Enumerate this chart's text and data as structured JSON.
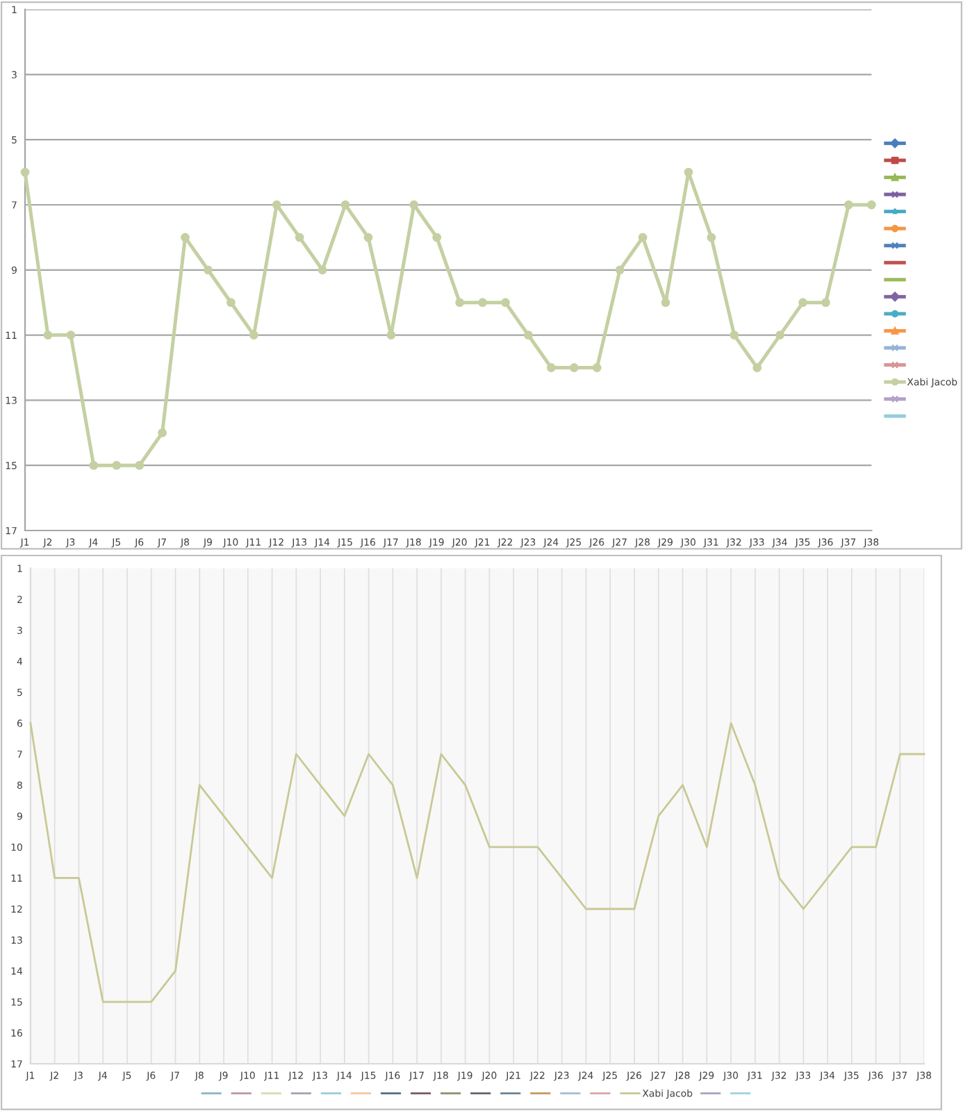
{
  "chart_data": [
    {
      "type": "line",
      "categories": [
        "J1",
        "J2",
        "J3",
        "J4",
        "J5",
        "J6",
        "J7",
        "J8",
        "J9",
        "J10",
        "J11",
        "J12",
        "J13",
        "J14",
        "J15",
        "J16",
        "J17",
        "J18",
        "J19",
        "J20",
        "J21",
        "J22",
        "J23",
        "J24",
        "J25",
        "J26",
        "J27",
        "J28",
        "J29",
        "J30",
        "J31",
        "J32",
        "J33",
        "J34",
        "J35",
        "J36",
        "J37",
        "J38"
      ],
      "ylim": [
        17,
        1
      ],
      "yticks": [
        1,
        3,
        5,
        7,
        9,
        11,
        13,
        15,
        17
      ],
      "grid": "y",
      "legend": "right",
      "line_style": "solid",
      "series": [
        {
          "color": "#4a7ebb",
          "marker": "diamond",
          "values": [
            null,
            null,
            null,
            null,
            null,
            null,
            null,
            null,
            null,
            null,
            null,
            null,
            null,
            null,
            null,
            null,
            null,
            null,
            null,
            null,
            null,
            null,
            null,
            null,
            null,
            null,
            null,
            null,
            null,
            null,
            null,
            null,
            null,
            null,
            null,
            null,
            null,
            null
          ]
        },
        {
          "color": "#be4b48",
          "marker": "square",
          "values": [
            null,
            null,
            null,
            null,
            null,
            null,
            null,
            null,
            null,
            null,
            null,
            null,
            null,
            null,
            null,
            null,
            null,
            null,
            null,
            null,
            null,
            null,
            null,
            null,
            null,
            null,
            null,
            null,
            null,
            null,
            null,
            null,
            null,
            null,
            null,
            null,
            null,
            null
          ]
        },
        {
          "color": "#98b954",
          "marker": "triangle",
          "values": [
            null,
            null,
            null,
            null,
            null,
            null,
            null,
            null,
            null,
            null,
            null,
            null,
            null,
            null,
            null,
            null,
            null,
            null,
            null,
            null,
            null,
            null,
            null,
            null,
            null,
            null,
            null,
            null,
            null,
            null,
            null,
            null,
            null,
            null,
            null,
            null,
            null,
            null
          ]
        },
        {
          "color": "#7d60a0",
          "marker": "cross",
          "values": [
            null,
            null,
            null,
            null,
            null,
            null,
            null,
            null,
            null,
            null,
            null,
            null,
            null,
            null,
            null,
            null,
            null,
            null,
            null,
            null,
            null,
            null,
            null,
            null,
            null,
            null,
            null,
            null,
            null,
            null,
            null,
            null,
            null,
            null,
            null,
            null,
            null,
            null
          ]
        },
        {
          "color": "#46aac5",
          "marker": "star",
          "values": [
            null,
            null,
            null,
            null,
            null,
            null,
            null,
            null,
            null,
            null,
            null,
            null,
            null,
            null,
            null,
            null,
            null,
            null,
            null,
            null,
            null,
            null,
            null,
            null,
            null,
            null,
            null,
            null,
            null,
            null,
            null,
            null,
            null,
            null,
            null,
            null,
            null,
            null
          ]
        },
        {
          "color": "#f69545",
          "marker": "circle",
          "values": [
            null,
            null,
            null,
            null,
            null,
            null,
            null,
            null,
            null,
            null,
            null,
            null,
            null,
            null,
            null,
            null,
            null,
            null,
            null,
            null,
            null,
            null,
            null,
            null,
            null,
            null,
            null,
            null,
            null,
            null,
            null,
            null,
            null,
            null,
            null,
            null,
            null,
            null
          ]
        },
        {
          "color": "#4f81bd",
          "marker": "cross",
          "values": [
            null,
            null,
            null,
            null,
            null,
            null,
            null,
            null,
            null,
            null,
            null,
            null,
            null,
            null,
            null,
            null,
            null,
            null,
            null,
            null,
            null,
            null,
            null,
            null,
            null,
            null,
            null,
            null,
            null,
            null,
            null,
            null,
            null,
            null,
            null,
            null,
            null,
            null
          ]
        },
        {
          "color": "#c0504d",
          "marker": "none",
          "values": [
            null,
            null,
            null,
            null,
            null,
            null,
            null,
            null,
            null,
            null,
            null,
            null,
            null,
            null,
            null,
            null,
            null,
            null,
            null,
            null,
            null,
            null,
            null,
            null,
            null,
            null,
            null,
            null,
            null,
            null,
            null,
            null,
            null,
            null,
            null,
            null,
            null,
            null
          ]
        },
        {
          "color": "#9bbb59",
          "marker": "none",
          "values": [
            null,
            null,
            null,
            null,
            null,
            null,
            null,
            null,
            null,
            null,
            null,
            null,
            null,
            null,
            null,
            null,
            null,
            null,
            null,
            null,
            null,
            null,
            null,
            null,
            null,
            null,
            null,
            null,
            null,
            null,
            null,
            null,
            null,
            null,
            null,
            null,
            null,
            null
          ]
        },
        {
          "color": "#8064a2",
          "marker": "diamond",
          "values": [
            null,
            null,
            null,
            null,
            null,
            null,
            null,
            null,
            null,
            null,
            null,
            null,
            null,
            null,
            null,
            null,
            null,
            null,
            null,
            null,
            null,
            null,
            null,
            null,
            null,
            null,
            null,
            null,
            null,
            null,
            null,
            null,
            null,
            null,
            null,
            null,
            null,
            null
          ]
        },
        {
          "color": "#4bacc6",
          "marker": "circle",
          "values": [
            null,
            null,
            null,
            null,
            null,
            null,
            null,
            null,
            null,
            null,
            null,
            null,
            null,
            null,
            null,
            null,
            null,
            null,
            null,
            null,
            null,
            null,
            null,
            null,
            null,
            null,
            null,
            null,
            null,
            null,
            null,
            null,
            null,
            null,
            null,
            null,
            null,
            null
          ]
        },
        {
          "color": "#f79646",
          "marker": "triangle",
          "values": [
            null,
            null,
            null,
            null,
            null,
            null,
            null,
            null,
            null,
            null,
            null,
            null,
            null,
            null,
            null,
            null,
            null,
            null,
            null,
            null,
            null,
            null,
            null,
            null,
            null,
            null,
            null,
            null,
            null,
            null,
            null,
            null,
            null,
            null,
            null,
            null,
            null,
            null
          ]
        },
        {
          "color": "#95b3d7",
          "marker": "cross",
          "values": [
            null,
            null,
            null,
            null,
            null,
            null,
            null,
            null,
            null,
            null,
            null,
            null,
            null,
            null,
            null,
            null,
            null,
            null,
            null,
            null,
            null,
            null,
            null,
            null,
            null,
            null,
            null,
            null,
            null,
            null,
            null,
            null,
            null,
            null,
            null,
            null,
            null,
            null
          ]
        },
        {
          "color": "#d99694",
          "marker": "cross",
          "values": [
            null,
            null,
            null,
            null,
            null,
            null,
            null,
            null,
            null,
            null,
            null,
            null,
            null,
            null,
            null,
            null,
            null,
            null,
            null,
            null,
            null,
            null,
            null,
            null,
            null,
            null,
            null,
            null,
            null,
            null,
            null,
            null,
            null,
            null,
            null,
            null,
            null,
            null
          ]
        },
        {
          "name": "Xabi Jacob",
          "color": "#c4d0a2",
          "marker": "circle",
          "values": [
            6,
            11,
            11,
            15,
            15,
            15,
            14,
            8,
            9,
            10,
            11,
            7,
            8,
            9,
            7,
            8,
            11,
            7,
            8,
            10,
            10,
            10,
            11,
            12,
            12,
            12,
            9,
            8,
            10,
            6,
            8,
            11,
            12,
            11,
            10,
            10,
            7,
            7
          ]
        },
        {
          "color": "#b3a2c7",
          "marker": "cross",
          "values": [
            null,
            null,
            null,
            null,
            null,
            null,
            null,
            null,
            null,
            null,
            null,
            null,
            null,
            null,
            null,
            null,
            null,
            null,
            null,
            null,
            null,
            null,
            null,
            null,
            null,
            null,
            null,
            null,
            null,
            null,
            null,
            null,
            null,
            null,
            null,
            null,
            null,
            null
          ]
        },
        {
          "color": "#93cddd",
          "marker": "none",
          "values": [
            null,
            null,
            null,
            null,
            null,
            null,
            null,
            null,
            null,
            null,
            null,
            null,
            null,
            null,
            null,
            null,
            null,
            null,
            null,
            null,
            null,
            null,
            null,
            null,
            null,
            null,
            null,
            null,
            null,
            null,
            null,
            null,
            null,
            null,
            null,
            null,
            null,
            null
          ]
        }
      ]
    },
    {
      "type": "line",
      "categories": [
        "J1",
        "J2",
        "J3",
        "J4",
        "J5",
        "J6",
        "J7",
        "J8",
        "J9",
        "J10",
        "J11",
        "J12",
        "J13",
        "J14",
        "J15",
        "J16",
        "J17",
        "J18",
        "J19",
        "J20",
        "J21",
        "J22",
        "J23",
        "J24",
        "J25",
        "J26",
        "J27",
        "J28",
        "J29",
        "J30",
        "J31",
        "J32",
        "J33",
        "J34",
        "J35",
        "J36",
        "J37",
        "J38"
      ],
      "ylim": [
        17,
        1
      ],
      "yticks": [
        1,
        2,
        3,
        4,
        5,
        6,
        7,
        8,
        9,
        10,
        11,
        12,
        13,
        14,
        15,
        16,
        17
      ],
      "grid": "x",
      "legend": "bottom",
      "line_style": "solid",
      "series": [
        {
          "color": "#8eb4c8",
          "values": [
            null,
            null,
            null,
            null,
            null,
            null,
            null,
            null,
            null,
            null,
            null,
            null,
            null,
            null,
            null,
            null,
            null,
            null,
            null,
            null,
            null,
            null,
            null,
            null,
            null,
            null,
            null,
            null,
            null,
            null,
            null,
            null,
            null,
            null,
            null,
            null,
            null,
            null
          ]
        },
        {
          "color": "#b89a9e",
          "values": [
            null,
            null,
            null,
            null,
            null,
            null,
            null,
            null,
            null,
            null,
            null,
            null,
            null,
            null,
            null,
            null,
            null,
            null,
            null,
            null,
            null,
            null,
            null,
            null,
            null,
            null,
            null,
            null,
            null,
            null,
            null,
            null,
            null,
            null,
            null,
            null,
            null,
            null
          ]
        },
        {
          "color": "#d6dbb4",
          "values": [
            null,
            null,
            null,
            null,
            null,
            null,
            null,
            null,
            null,
            null,
            null,
            null,
            null,
            null,
            null,
            null,
            null,
            null,
            null,
            null,
            null,
            null,
            null,
            null,
            null,
            null,
            null,
            null,
            null,
            null,
            null,
            null,
            null,
            null,
            null,
            null,
            null,
            null
          ]
        },
        {
          "color": "#a7a0b4",
          "values": [
            null,
            null,
            null,
            null,
            null,
            null,
            null,
            null,
            null,
            null,
            null,
            null,
            null,
            null,
            null,
            null,
            null,
            null,
            null,
            null,
            null,
            null,
            null,
            null,
            null,
            null,
            null,
            null,
            null,
            null,
            null,
            null,
            null,
            null,
            null,
            null,
            null,
            null
          ]
        },
        {
          "color": "#9ccbdc",
          "values": [
            null,
            null,
            null,
            null,
            null,
            null,
            null,
            null,
            null,
            null,
            null,
            null,
            null,
            null,
            null,
            null,
            null,
            null,
            null,
            null,
            null,
            null,
            null,
            null,
            null,
            null,
            null,
            null,
            null,
            null,
            null,
            null,
            null,
            null,
            null,
            null,
            null,
            null
          ]
        },
        {
          "color": "#f2c79e",
          "values": [
            null,
            null,
            null,
            null,
            null,
            null,
            null,
            null,
            null,
            null,
            null,
            null,
            null,
            null,
            null,
            null,
            null,
            null,
            null,
            null,
            null,
            null,
            null,
            null,
            null,
            null,
            null,
            null,
            null,
            null,
            null,
            null,
            null,
            null,
            null,
            null,
            null,
            null
          ]
        },
        {
          "color": "#5a6c80",
          "values": [
            null,
            null,
            null,
            null,
            null,
            null,
            null,
            null,
            null,
            null,
            null,
            null,
            null,
            null,
            null,
            null,
            null,
            null,
            null,
            null,
            null,
            null,
            null,
            null,
            null,
            null,
            null,
            null,
            null,
            null,
            null,
            null,
            null,
            null,
            null,
            null,
            null,
            null
          ]
        },
        {
          "color": "#7a5b62",
          "values": [
            null,
            null,
            null,
            null,
            null,
            null,
            null,
            null,
            null,
            null,
            null,
            null,
            null,
            null,
            null,
            null,
            null,
            null,
            null,
            null,
            null,
            null,
            null,
            null,
            null,
            null,
            null,
            null,
            null,
            null,
            null,
            null,
            null,
            null,
            null,
            null,
            null,
            null
          ]
        },
        {
          "color": "#8b9270",
          "values": [
            null,
            null,
            null,
            null,
            null,
            null,
            null,
            null,
            null,
            null,
            null,
            null,
            null,
            null,
            null,
            null,
            null,
            null,
            null,
            null,
            null,
            null,
            null,
            null,
            null,
            null,
            null,
            null,
            null,
            null,
            null,
            null,
            null,
            null,
            null,
            null,
            null,
            null
          ]
        },
        {
          "color": "#6a6172",
          "values": [
            null,
            null,
            null,
            null,
            null,
            null,
            null,
            null,
            null,
            null,
            null,
            null,
            null,
            null,
            null,
            null,
            null,
            null,
            null,
            null,
            null,
            null,
            null,
            null,
            null,
            null,
            null,
            null,
            null,
            null,
            null,
            null,
            null,
            null,
            null,
            null,
            null,
            null
          ]
        },
        {
          "color": "#6b8496",
          "values": [
            null,
            null,
            null,
            null,
            null,
            null,
            null,
            null,
            null,
            null,
            null,
            null,
            null,
            null,
            null,
            null,
            null,
            null,
            null,
            null,
            null,
            null,
            null,
            null,
            null,
            null,
            null,
            null,
            null,
            null,
            null,
            null,
            null,
            null,
            null,
            null,
            null,
            null
          ]
        },
        {
          "color": "#c49a5e",
          "values": [
            null,
            null,
            null,
            null,
            null,
            null,
            null,
            null,
            null,
            null,
            null,
            null,
            null,
            null,
            null,
            null,
            null,
            null,
            null,
            null,
            null,
            null,
            null,
            null,
            null,
            null,
            null,
            null,
            null,
            null,
            null,
            null,
            null,
            null,
            null,
            null,
            null,
            null
          ]
        },
        {
          "color": "#a3bdd6",
          "values": [
            null,
            null,
            null,
            null,
            null,
            null,
            null,
            null,
            null,
            null,
            null,
            null,
            null,
            null,
            null,
            null,
            null,
            null,
            null,
            null,
            null,
            null,
            null,
            null,
            null,
            null,
            null,
            null,
            null,
            null,
            null,
            null,
            null,
            null,
            null,
            null,
            null,
            null
          ]
        },
        {
          "color": "#dca4ab",
          "values": [
            null,
            null,
            null,
            null,
            null,
            null,
            null,
            null,
            null,
            null,
            null,
            null,
            null,
            null,
            null,
            null,
            null,
            null,
            null,
            null,
            null,
            null,
            null,
            null,
            null,
            null,
            null,
            null,
            null,
            null,
            null,
            null,
            null,
            null,
            null,
            null,
            null,
            null
          ]
        },
        {
          "name": "Xabi Jacob",
          "color": "#c8c894",
          "values": [
            6,
            11,
            11,
            15,
            15,
            15,
            14,
            8,
            9,
            10,
            11,
            7,
            8,
            9,
            7,
            8,
            11,
            7,
            8,
            10,
            10,
            10,
            11,
            12,
            12,
            12,
            9,
            8,
            10,
            6,
            8,
            11,
            12,
            11,
            10,
            10,
            7,
            7
          ]
        },
        {
          "color": "#aaa3bb",
          "values": [
            null,
            null,
            null,
            null,
            null,
            null,
            null,
            null,
            null,
            null,
            null,
            null,
            null,
            null,
            null,
            null,
            null,
            null,
            null,
            null,
            null,
            null,
            null,
            null,
            null,
            null,
            null,
            null,
            null,
            null,
            null,
            null,
            null,
            null,
            null,
            null,
            null,
            null
          ]
        },
        {
          "color": "#9fd3dc",
          "values": [
            null,
            null,
            null,
            null,
            null,
            null,
            null,
            null,
            null,
            null,
            null,
            null,
            null,
            null,
            null,
            null,
            null,
            null,
            null,
            null,
            null,
            null,
            null,
            null,
            null,
            null,
            null,
            null,
            null,
            null,
            null,
            null,
            null,
            null,
            null,
            null,
            null,
            null
          ]
        }
      ]
    }
  ]
}
